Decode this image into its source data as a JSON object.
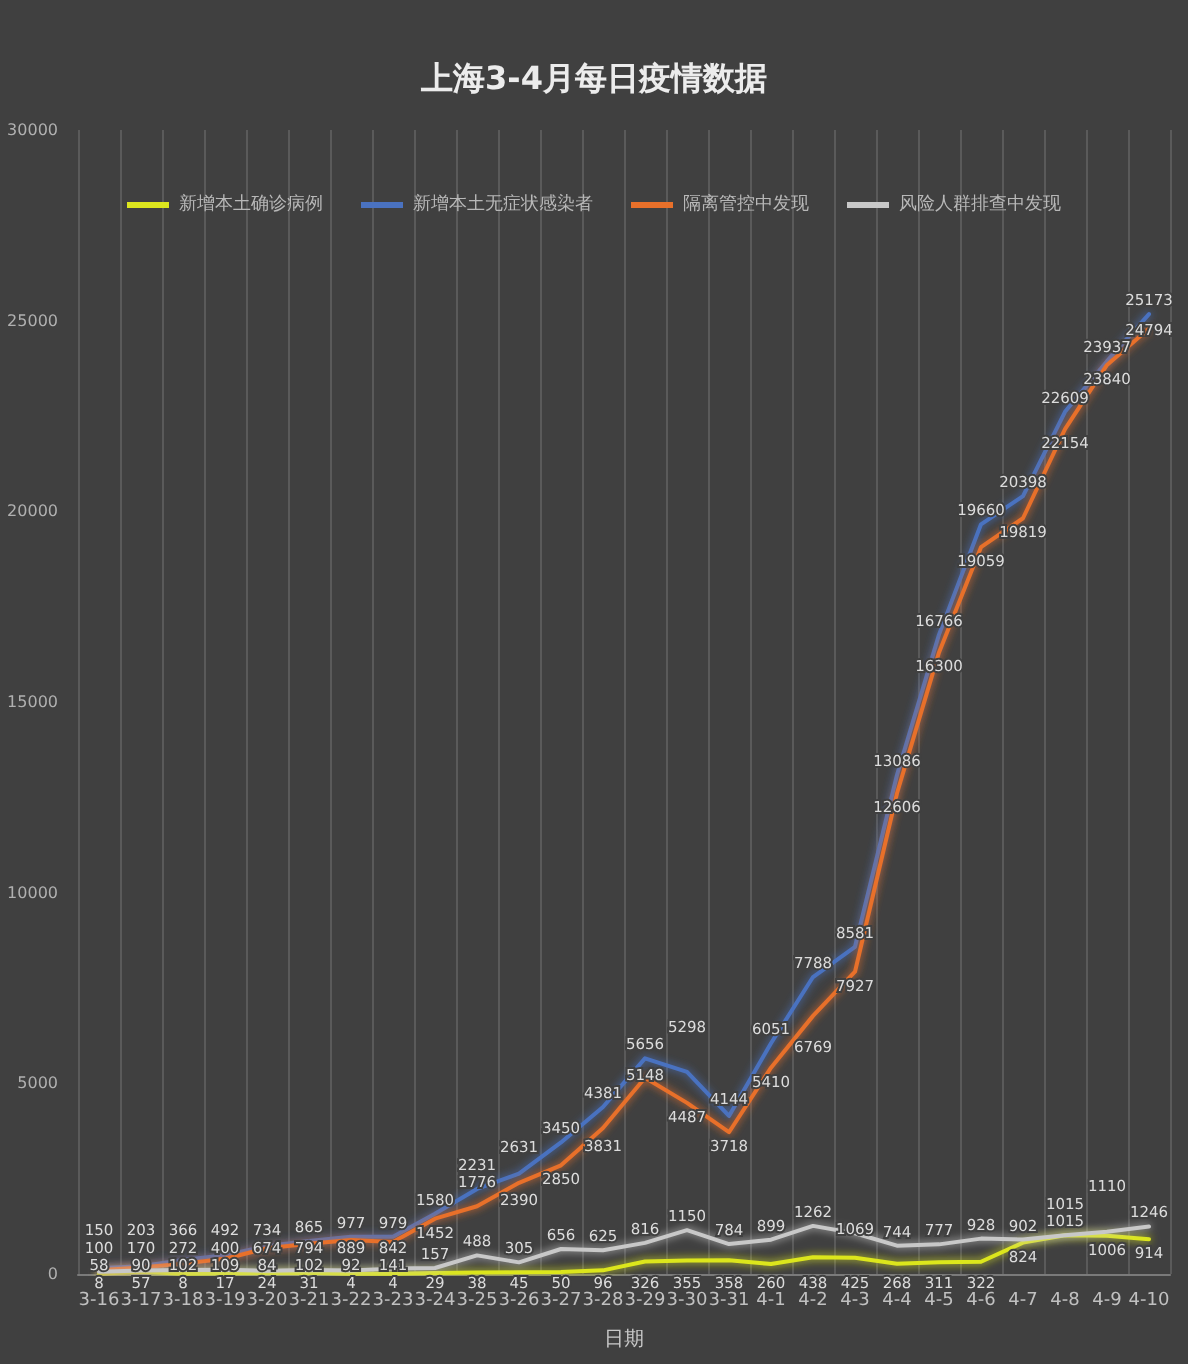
{
  "chart_data": {
    "type": "line",
    "title": "上海3-4月每日疫情数据",
    "xlabel": "日期",
    "categories": [
      "3-16",
      "3-17",
      "3-18",
      "3-19",
      "3-20",
      "3-21",
      "3-22",
      "3-23",
      "3-24",
      "3-25",
      "3-26",
      "3-27",
      "3-28",
      "3-29",
      "3-30",
      "3-31",
      "4-1",
      "4-2",
      "4-3",
      "4-4",
      "4-5",
      "4-6",
      "4-7",
      "4-8",
      "4-9",
      "4-10"
    ],
    "series": [
      {
        "name": "新增本土确诊病例",
        "color": "#dce61e",
        "values": [
          8,
          57,
          8,
          17,
          24,
          31,
          4,
          4,
          29,
          38,
          45,
          50,
          96,
          326,
          355,
          358,
          260,
          438,
          425,
          268,
          311,
          322,
          824,
          1015,
          1006,
          914
        ]
      },
      {
        "name": "新增本土无症状感染者",
        "color": "#4a72c0",
        "values": [
          150,
          203,
          366,
          492,
          734,
          865,
          977,
          979,
          1580,
          2231,
          2631,
          3450,
          4381,
          5656,
          5298,
          4144,
          6051,
          7788,
          8581,
          13086,
          16766,
          19660,
          20398,
          22609,
          23937,
          25173
        ]
      },
      {
        "name": "隔离管控中发现",
        "color": "#e8702a",
        "values": [
          100,
          170,
          272,
          400,
          674,
          794,
          889,
          842,
          1452,
          1776,
          2390,
          2850,
          3831,
          5148,
          4487,
          3718,
          5410,
          6769,
          7927,
          12606,
          16300,
          19059,
          19819,
          22154,
          23840,
          24794
        ]
      },
      {
        "name": "风险人群排查中发现",
        "color": "#c8c8c8",
        "values": [
          58,
          90,
          102,
          109,
          84,
          102,
          92,
          141,
          157,
          488,
          305,
          656,
          625,
          816,
          1150,
          784,
          899,
          1262,
          1069,
          744,
          777,
          928,
          902,
          1015,
          1110,
          1246
        ]
      }
    ],
    "ylim": [
      0,
      30000
    ],
    "yticks": [
      0,
      5000,
      10000,
      15000,
      20000,
      25000,
      30000
    ],
    "grid": "x",
    "legend": "top",
    "marker": "none",
    "data_labels": true
  }
}
